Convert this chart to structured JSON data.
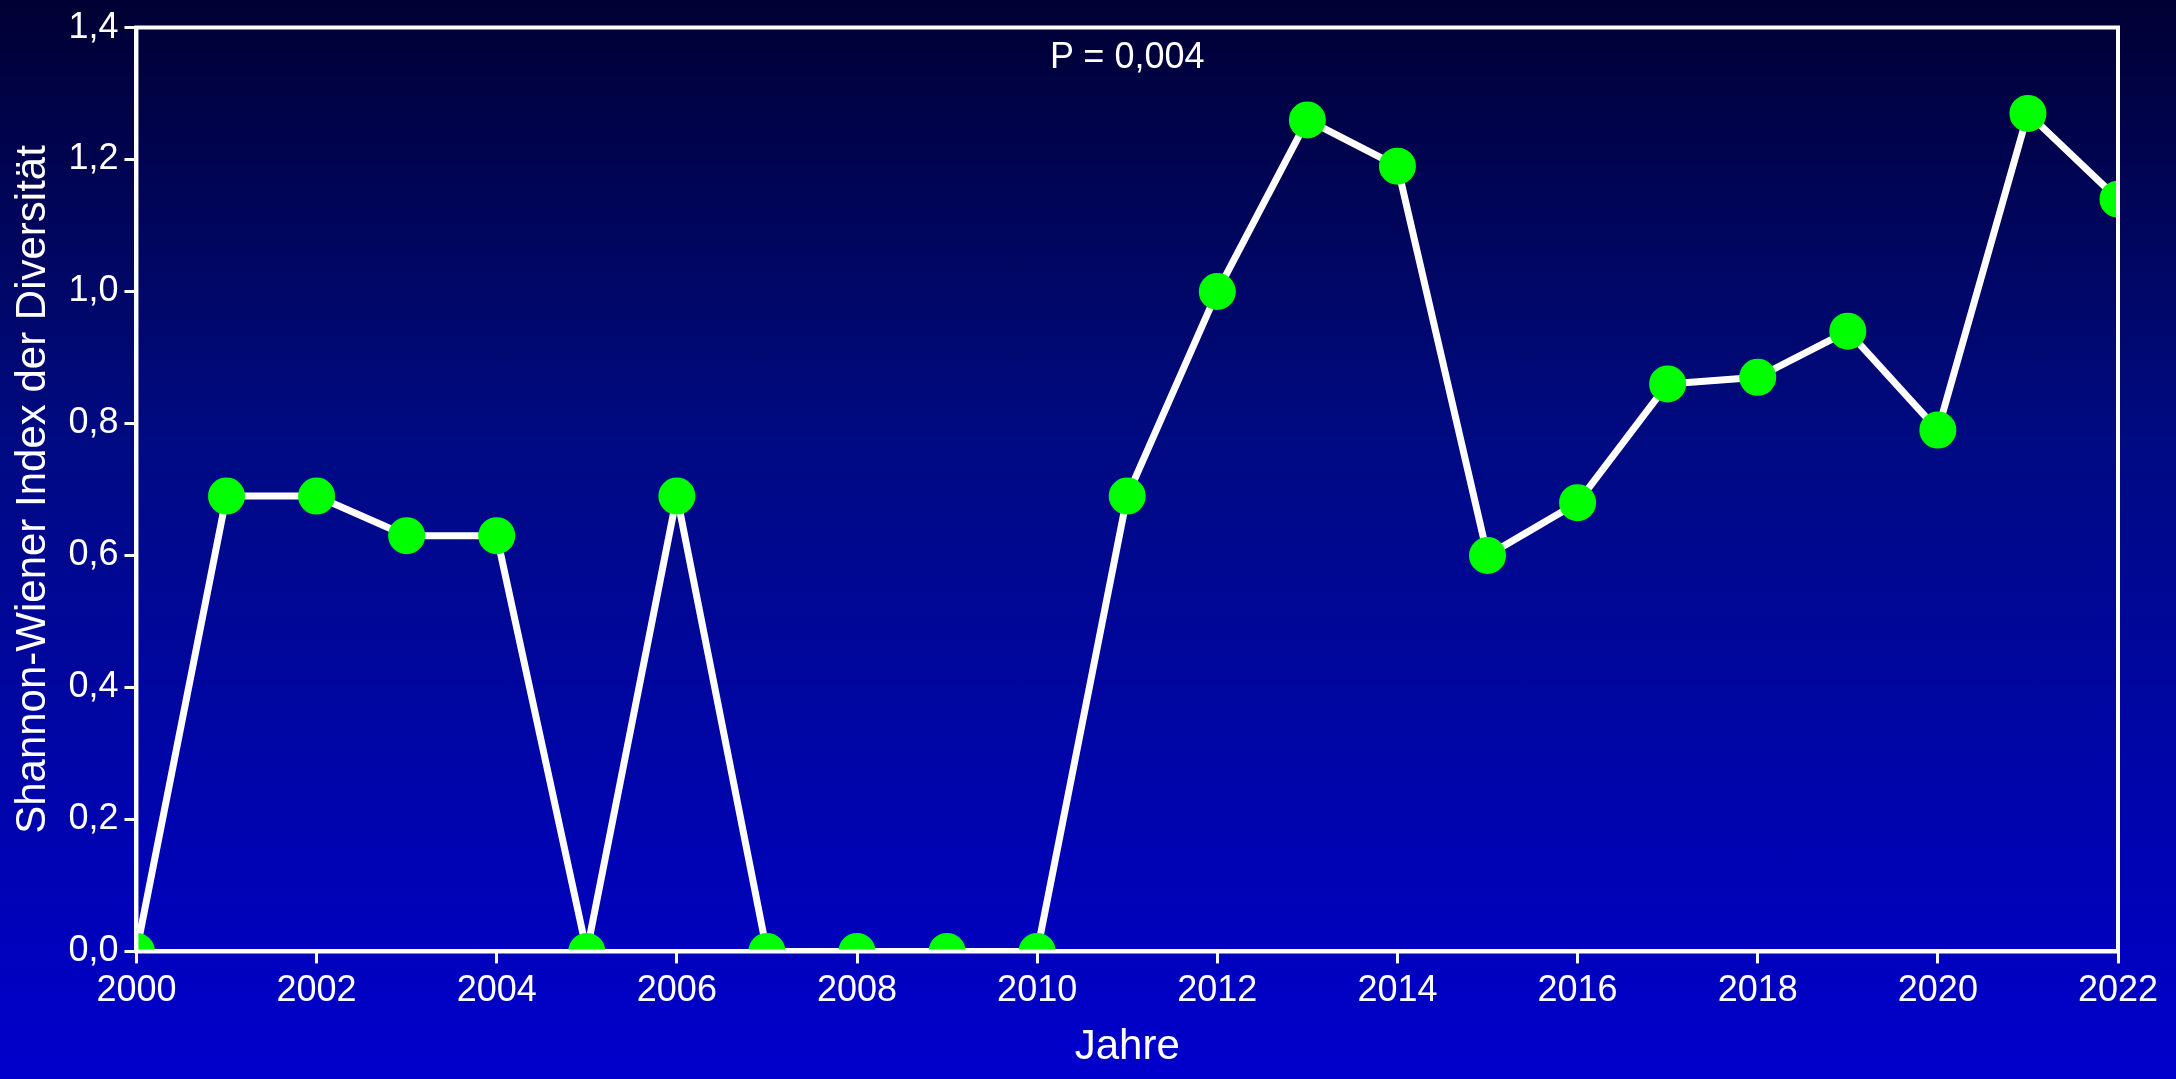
{
  "chart_data": {
    "type": "line",
    "xlabel": "Jahre",
    "ylabel": "Shannon-Wiener Index der Diversität",
    "annotations": [
      "P = 0,004"
    ],
    "x": [
      2000,
      2001,
      2002,
      2003,
      2004,
      2005,
      2006,
      2007,
      2008,
      2009,
      2010,
      2011,
      2012,
      2013,
      2014,
      2015,
      2016,
      2017,
      2018,
      2019,
      2020,
      2021,
      2022
    ],
    "series": [
      {
        "color": "#ffffff",
        "colors": [
          "#00ff00",
          "#00ff00",
          "#00ff00",
          "#00ff00",
          "#00ff00",
          "#00ff00",
          "#00ff00",
          "#00ff00",
          "#00ff00",
          "#00ff00",
          "#00ff00",
          "#00ff00",
          "#00ff00",
          "#00ff00",
          "#00ff00",
          "#00ff00",
          "#00ff00",
          "#00ff00",
          "#00ff00",
          "#00ff00",
          "#00ff00",
          "#00ff00",
          "#00ff00"
        ],
        "values": [
          0,
          0.69,
          0.69,
          0.63,
          0.63,
          0,
          0.69,
          0,
          0,
          0,
          0,
          0.69,
          1.0,
          1.26,
          1.19,
          0.6,
          0.68,
          0.86,
          0.87,
          0.94,
          0.79,
          1.27,
          1.14
        ]
      }
    ],
    "xlim": [
      2000,
      2022
    ],
    "xticks": [
      2000,
      2002,
      2004,
      2006,
      2008,
      2010,
      2012,
      2014,
      2016,
      2018,
      2020,
      2022
    ],
    "ylim": [
      0,
      1.4
    ],
    "yticks": [
      {
        "value": 0,
        "label": "0,0"
      },
      {
        "value": 0.2,
        "label": "0,2"
      },
      {
        "value": 0.4,
        "label": "0,4"
      },
      {
        "value": 0.6,
        "label": "0,6"
      },
      {
        "value": 0.8,
        "label": "0,8"
      },
      {
        "value": 1.0,
        "label": "1,0"
      },
      {
        "value": 1.2,
        "label": "1,2"
      },
      {
        "value": 1.4,
        "label": "1,4"
      }
    ],
    "marker": "circle",
    "line_style": "solid",
    "grid": false,
    "legend": false
  }
}
